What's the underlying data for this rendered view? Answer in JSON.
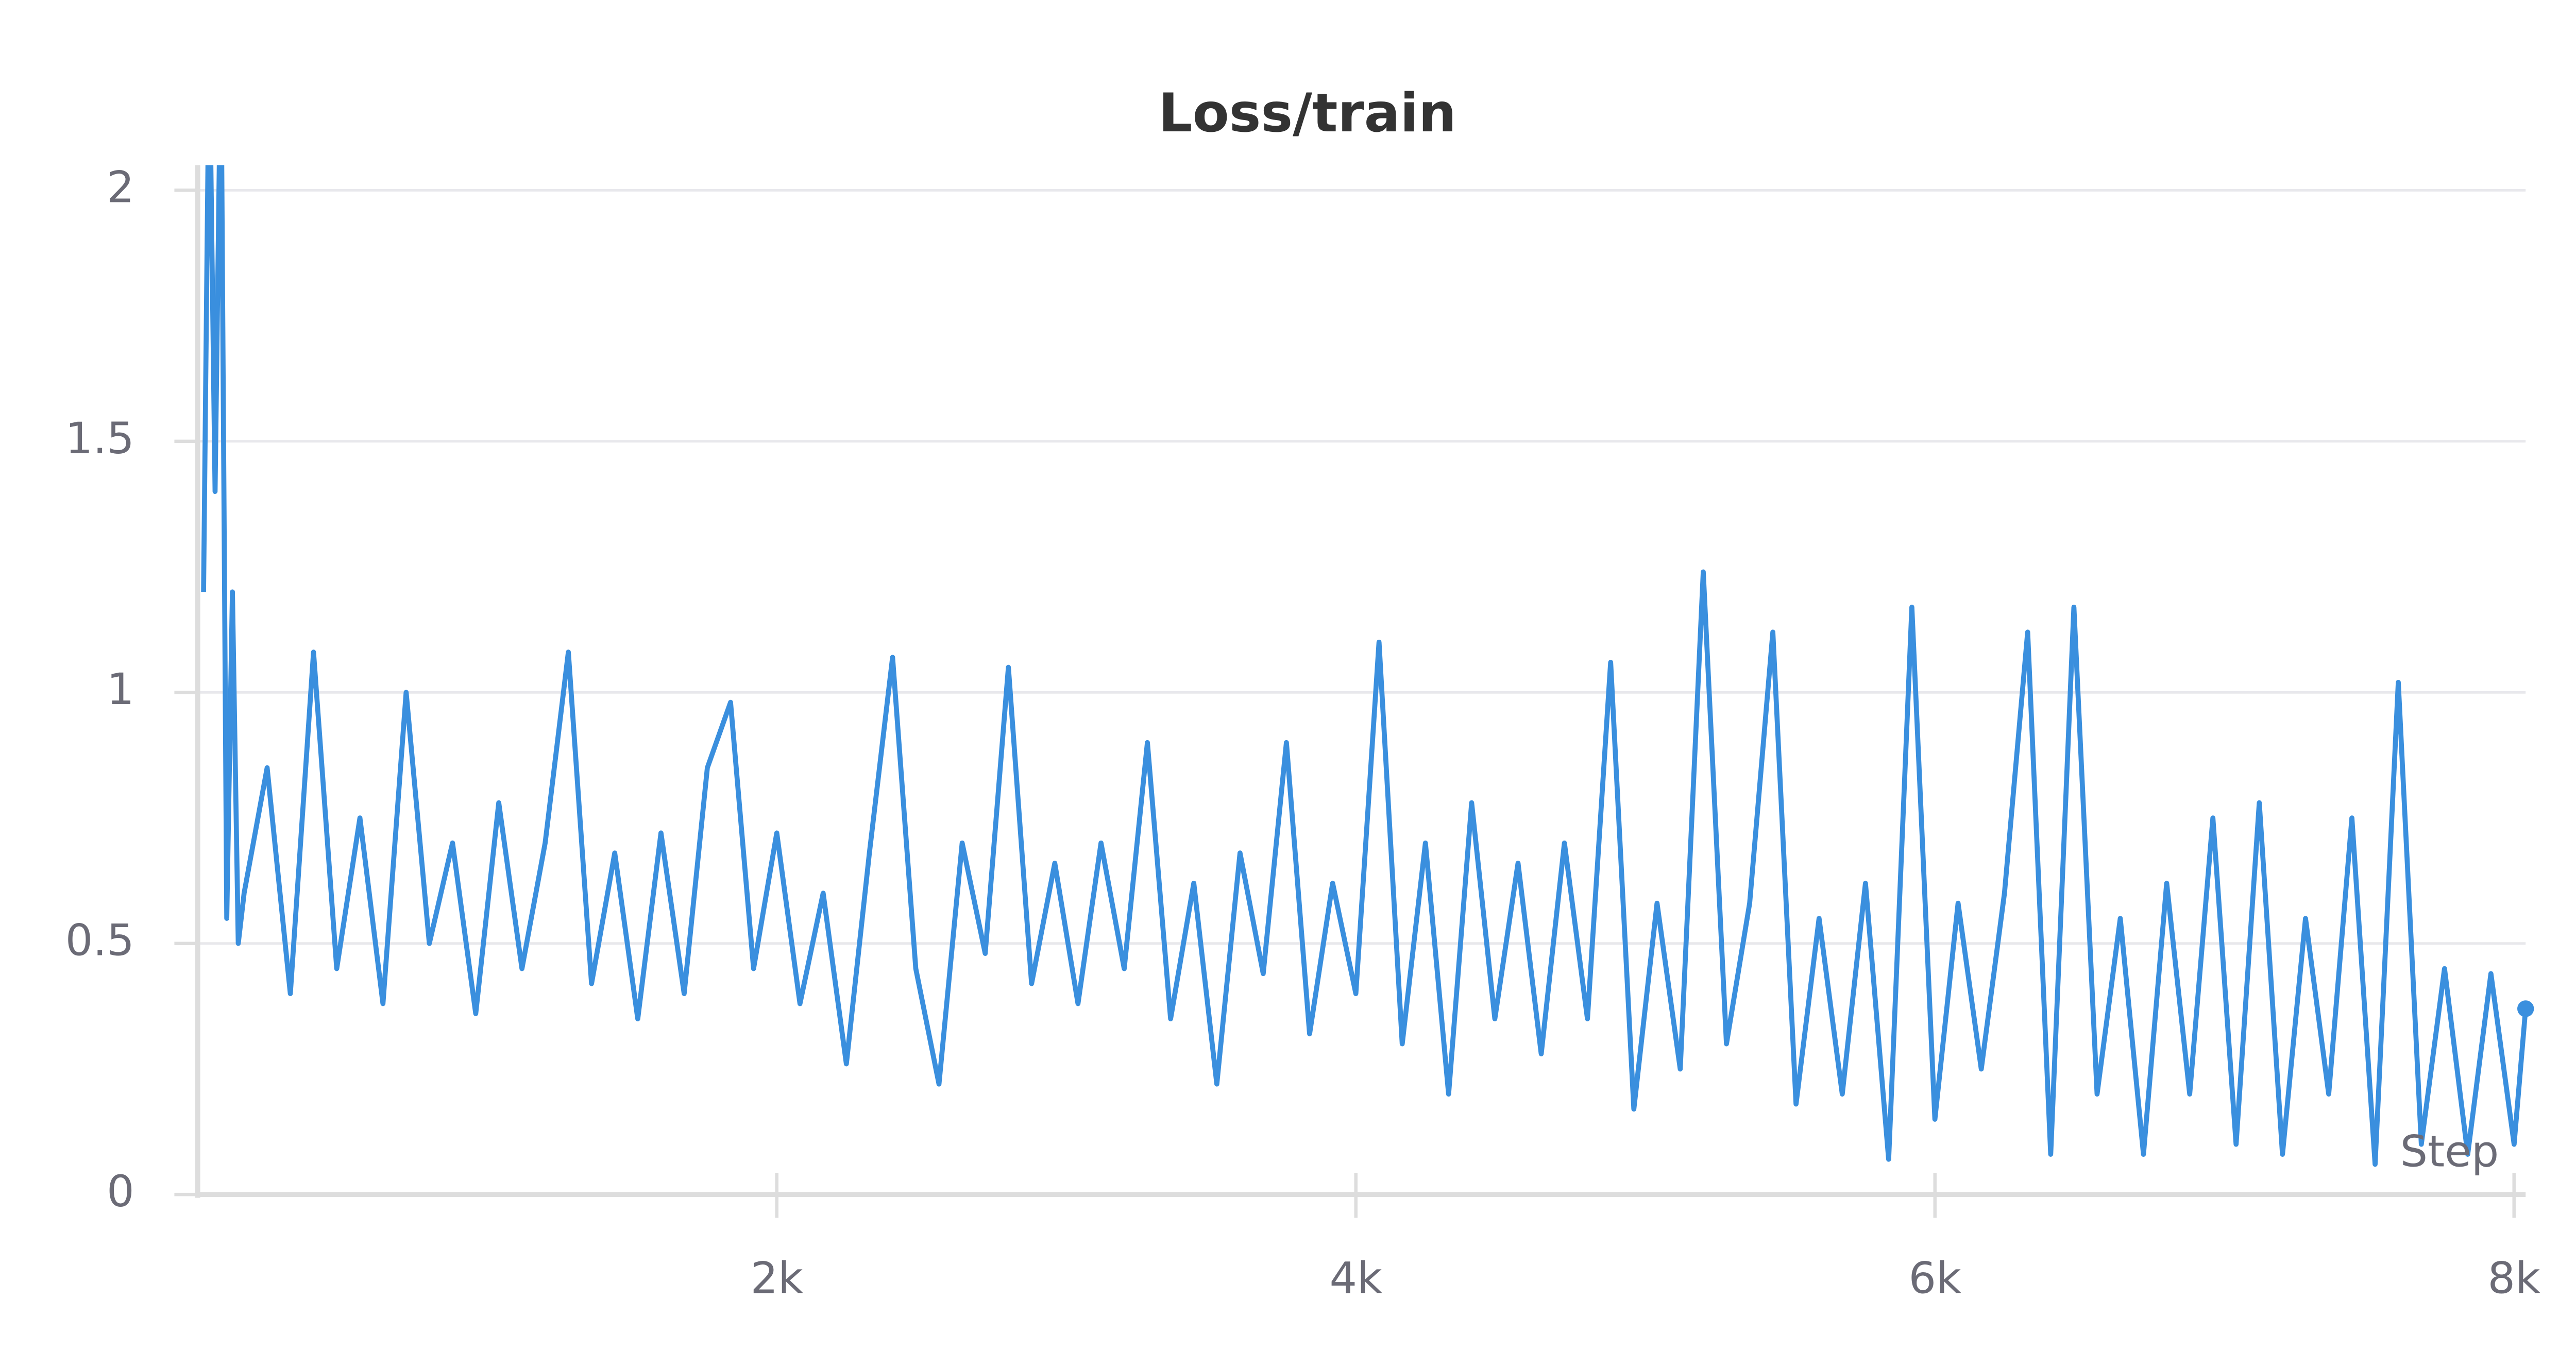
{
  "chart_data": {
    "type": "line",
    "title": "Loss/train",
    "x_label": "Step",
    "x": [
      20,
      40,
      60,
      80,
      100,
      120,
      140,
      160,
      240,
      320,
      400,
      480,
      560,
      640,
      720,
      800,
      880,
      960,
      1040,
      1120,
      1200,
      1280,
      1360,
      1440,
      1520,
      1600,
      1680,
      1760,
      1840,
      1920,
      2000,
      2080,
      2160,
      2240,
      2320,
      2400,
      2480,
      2560,
      2640,
      2720,
      2800,
      2880,
      2960,
      3040,
      3120,
      3200,
      3280,
      3360,
      3440,
      3520,
      3600,
      3680,
      3760,
      3840,
      3920,
      4000,
      4080,
      4160,
      4240,
      4320,
      4400,
      4480,
      4560,
      4640,
      4720,
      4800,
      4880,
      4960,
      5040,
      5120,
      5200,
      5280,
      5360,
      5440,
      5520,
      5600,
      5680,
      5760,
      5840,
      5920,
      6000,
      6080,
      6160,
      6240,
      6320,
      6400,
      6480,
      6560,
      6640,
      6720,
      6800,
      6880,
      6960,
      7040,
      7120,
      7200,
      7280,
      7360,
      7440,
      7520,
      7600,
      7680,
      7760,
      7840,
      7920,
      8000,
      8040
    ],
    "series": [
      {
        "name": "Loss/train",
        "color": "#3a8fde",
        "values": [
          1.2,
          2.3,
          1.4,
          2.3,
          0.55,
          1.2,
          0.5,
          0.6,
          0.85,
          0.4,
          1.08,
          0.45,
          0.75,
          0.38,
          1.0,
          0.5,
          0.7,
          0.36,
          0.78,
          0.45,
          0.7,
          1.08,
          0.42,
          0.68,
          0.35,
          0.72,
          0.4,
          0.85,
          0.98,
          0.45,
          0.72,
          0.38,
          0.6,
          0.26,
          0.68,
          1.07,
          0.45,
          0.22,
          0.7,
          0.48,
          1.05,
          0.42,
          0.66,
          0.38,
          0.7,
          0.45,
          0.9,
          0.35,
          0.62,
          0.22,
          0.68,
          0.44,
          0.9,
          0.32,
          0.62,
          0.4,
          1.1,
          0.3,
          0.7,
          0.2,
          0.78,
          0.35,
          0.66,
          0.28,
          0.7,
          0.35,
          1.06,
          0.17,
          0.58,
          0.25,
          1.24,
          0.3,
          0.58,
          1.12,
          0.18,
          0.55,
          0.2,
          0.62,
          0.07,
          1.17,
          0.15,
          0.58,
          0.25,
          0.6,
          1.12,
          0.08,
          1.17,
          0.2,
          0.55,
          0.08,
          0.62,
          0.2,
          0.75,
          0.1,
          0.78,
          0.08,
          0.55,
          0.2,
          0.75,
          0.06,
          1.02,
          0.1,
          0.45,
          0.08,
          0.44,
          0.1,
          0.37
        ]
      }
    ],
    "xlim": [
      0,
      8040
    ],
    "ylim": [
      0,
      2.05
    ],
    "xticks": [
      {
        "value": 2000,
        "label": "2k"
      },
      {
        "value": 4000,
        "label": "4k"
      },
      {
        "value": 6000,
        "label": "6k"
      },
      {
        "value": 8000,
        "label": "8k"
      }
    ],
    "yticks": [
      0,
      0.5,
      1,
      1.5,
      2
    ],
    "grid": true
  }
}
